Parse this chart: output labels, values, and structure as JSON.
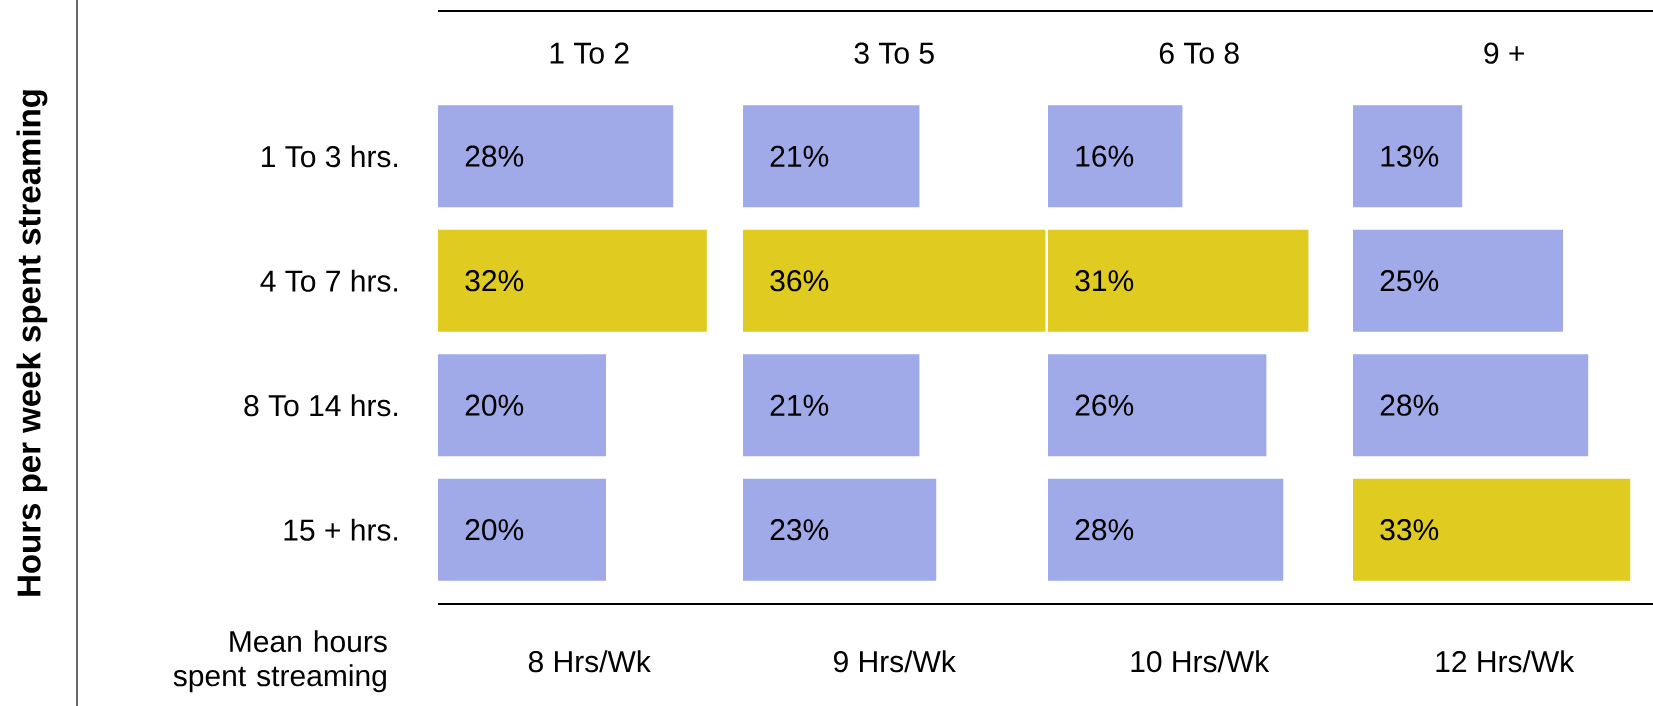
{
  "chart_data": [
    {
      "type": "bar",
      "orientation": "horizontal",
      "title": "1 To 2",
      "ylabel": "Hours per week spent streaming",
      "categories": [
        "1 To 3 hrs.",
        "4 To 7 hrs.",
        "8 To 14 hrs.",
        "15 + hrs."
      ],
      "values": [
        28,
        32,
        20,
        20
      ],
      "colors": [
        "#a0aae8",
        "#e0cb20",
        "#a0aae8",
        "#a0aae8"
      ],
      "value_labels": [
        "28%",
        "32%",
        "20%",
        "20%"
      ],
      "tick_labels": "y",
      "annotations": [
        "Mean hours spent streaming",
        "8 Hrs/Wk"
      ]
    },
    {
      "type": "bar",
      "orientation": "horizontal",
      "title": "3 To 5",
      "categories": [
        null,
        null,
        null,
        null
      ],
      "values": [
        21,
        36,
        21,
        23
      ],
      "colors": [
        "#a0aae8",
        "#e0cb20",
        "#a0aae8",
        "#a0aae8"
      ],
      "value_labels": [
        "21%",
        "36%",
        "21%",
        "23%"
      ],
      "tick_labels": false,
      "annotations": [
        "9 Hrs/Wk"
      ]
    },
    {
      "type": "bar",
      "orientation": "horizontal",
      "title": "6 To 8",
      "categories": [
        null,
        null,
        null,
        null
      ],
      "values": [
        16,
        31,
        26,
        28
      ],
      "colors": [
        "#a0aae8",
        "#e0cb20",
        "#a0aae8",
        "#a0aae8"
      ],
      "value_labels": [
        "16%",
        "31%",
        "26%",
        "28%"
      ],
      "tick_labels": false,
      "annotations": [
        "10 Hrs/Wk"
      ]
    },
    {
      "type": "bar",
      "orientation": "horizontal",
      "title": "9 +",
      "categories": [
        null,
        null,
        null,
        null
      ],
      "values": [
        13,
        25,
        28,
        33
      ],
      "colors": [
        "#a0aae8",
        "#a0aae8",
        "#a0aae8",
        "#e0cb20"
      ],
      "value_labels": [
        "13%",
        "25%",
        "28%",
        "33%"
      ],
      "tick_labels": false,
      "annotations": [
        "12 Hrs/Wk"
      ]
    }
  ]
}
